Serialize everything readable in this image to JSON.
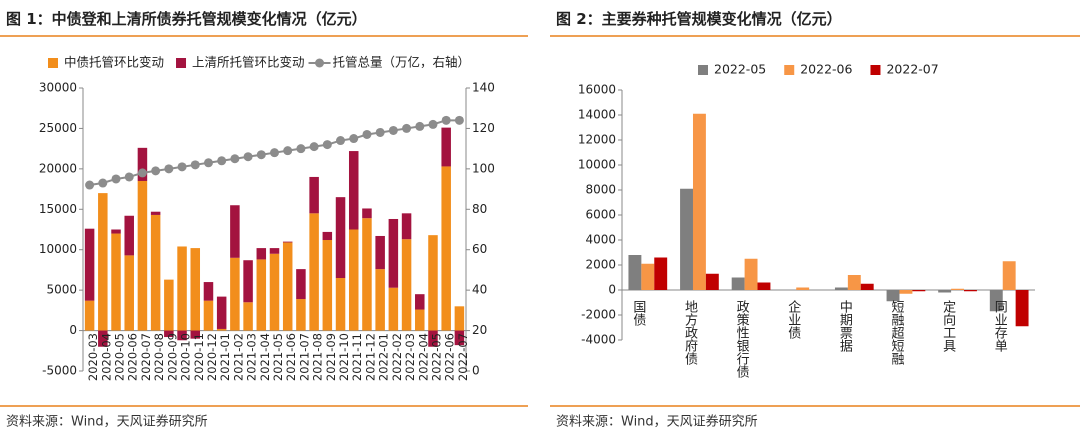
{
  "chart_data": [
    {
      "type": "bar",
      "stacked": true,
      "title": "图 1：中债登和上清所债券托管规模变化情况（亿元）",
      "source": "资料来源：Wind，天风证券研究所",
      "categories": [
        "2020-03",
        "2020-04",
        "2020-05",
        "2020-06",
        "2020-07",
        "2020-08",
        "2020-09",
        "2020-10",
        "2020-11",
        "2020-12",
        "2021-01",
        "2021-02",
        "2021-03",
        "2021-04",
        "2021-05",
        "2021-06",
        "2021-07",
        "2021-08",
        "2021-09",
        "2021-10",
        "2021-11",
        "2021-12",
        "2022-01",
        "2022-02",
        "2022-03",
        "2022-04",
        "2022-05",
        "2022-06",
        "2022-07"
      ],
      "series": [
        {
          "name": "中债托管环比变动",
          "color": "#f28e1c",
          "type": "bar",
          "values": [
            3700,
            17000,
            12000,
            9300,
            18500,
            14300,
            6300,
            10400,
            10200,
            3700,
            200,
            9000,
            3500,
            8800,
            9500,
            10900,
            3900,
            14500,
            11200,
            6500,
            12500,
            13900,
            7600,
            5300,
            11300,
            2600,
            11800,
            20300,
            3000
          ]
        },
        {
          "name": "上清所托管环比变动",
          "color": "#a3133f",
          "type": "bar",
          "values": [
            8900,
            -2000,
            500,
            4900,
            4100,
            400,
            -800,
            -1200,
            -1000,
            2300,
            4000,
            6500,
            5200,
            1400,
            700,
            100,
            3700,
            4500,
            1000,
            10000,
            9700,
            1200,
            4100,
            8500,
            3200,
            1900,
            -2000,
            4800,
            -1800
          ]
        },
        {
          "name": "托管总量（万亿，右轴）",
          "color": "#8c8c8c",
          "type": "line",
          "axis": "y2",
          "values": [
            92,
            93,
            95,
            96,
            98,
            99,
            100,
            101,
            102,
            103,
            104,
            105,
            106,
            107,
            108,
            109,
            110,
            111,
            112,
            114,
            115,
            117,
            118,
            119,
            120,
            121,
            122,
            124,
            124
          ]
        }
      ],
      "ylim": [
        -5000,
        30000
      ],
      "yticks": [
        -5000,
        0,
        5000,
        10000,
        15000,
        20000,
        25000,
        30000
      ],
      "y2lim": [
        0,
        140
      ],
      "y2ticks": [
        0,
        20,
        40,
        60,
        80,
        100,
        120,
        140
      ]
    },
    {
      "type": "bar",
      "title": "图 2：主要券种托管规模变化情况（亿元）",
      "source": "资料来源：Wind，天风证券研究所",
      "categories": [
        "国债",
        "地方政府债",
        "政策性银行债",
        "企业债",
        "中期票据",
        "短融超短融",
        "定向工具",
        "同业存单"
      ],
      "series": [
        {
          "name": "2022-05",
          "color": "#7f7f7f",
          "values": [
            2800,
            8100,
            1000,
            0,
            200,
            -900,
            -200,
            -1700
          ]
        },
        {
          "name": "2022-06",
          "color": "#f79646",
          "values": [
            2100,
            14100,
            2500,
            200,
            1200,
            -300,
            100,
            2300
          ]
        },
        {
          "name": "2022-07",
          "color": "#c00000",
          "values": [
            2600,
            1300,
            600,
            0,
            500,
            -100,
            -100,
            -2900
          ]
        }
      ],
      "ylim": [
        -4000,
        16000
      ],
      "yticks": [
        -4000,
        -2000,
        0,
        2000,
        4000,
        6000,
        8000,
        10000,
        12000,
        14000,
        16000
      ]
    }
  ]
}
